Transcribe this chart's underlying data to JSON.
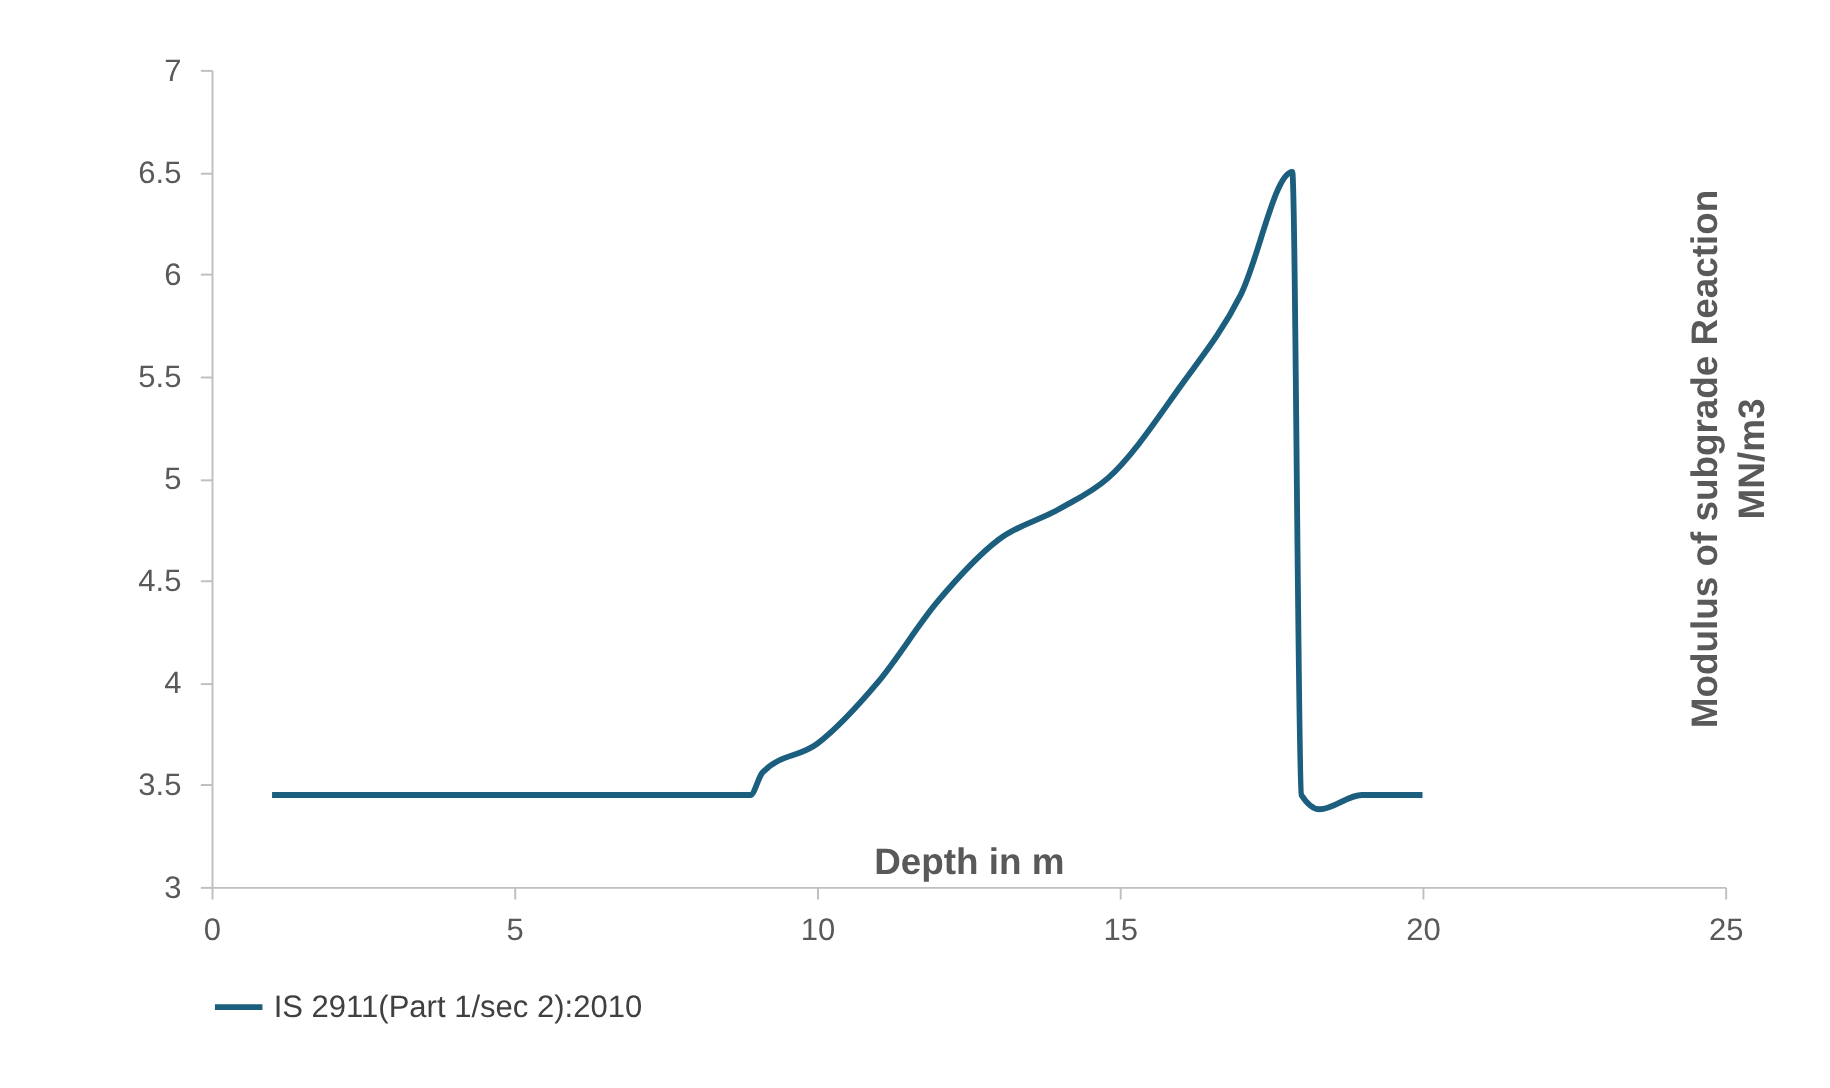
{
  "chart_data": {
    "type": "line",
    "xlabel": "Depth in m",
    "ylabel": "Modulus of subgrade Reaction\nMN/m3",
    "xlim": [
      0,
      25
    ],
    "xticks": [
      0,
      5,
      10,
      15,
      20,
      25
    ],
    "ylim": [
      3,
      7
    ],
    "yticks": [
      3,
      3.5,
      4,
      4.5,
      5,
      5.5,
      6,
      6.5,
      7
    ],
    "grid": false,
    "legend": "bottom",
    "marker": "none",
    "line_style": "solid",
    "series": [
      {
        "name": "IS 2911(Part 1/sec 2):2010",
        "color": "#1b5e7e",
        "x": [
          1,
          2,
          3,
          4,
          5,
          6,
          7,
          8,
          8.9,
          9.1,
          10,
          11,
          12,
          13,
          14,
          14.8,
          16,
          17,
          17.85,
          18,
          18.3,
          19,
          20
        ],
        "values": [
          3.45,
          3.45,
          3.45,
          3.45,
          3.45,
          3.45,
          3.45,
          3.45,
          3.45,
          3.56,
          3.7,
          4.0,
          4.4,
          4.7,
          4.85,
          5.0,
          5.45,
          5.9,
          6.5,
          3.45,
          3.38,
          3.45,
          3.45
        ]
      }
    ]
  }
}
